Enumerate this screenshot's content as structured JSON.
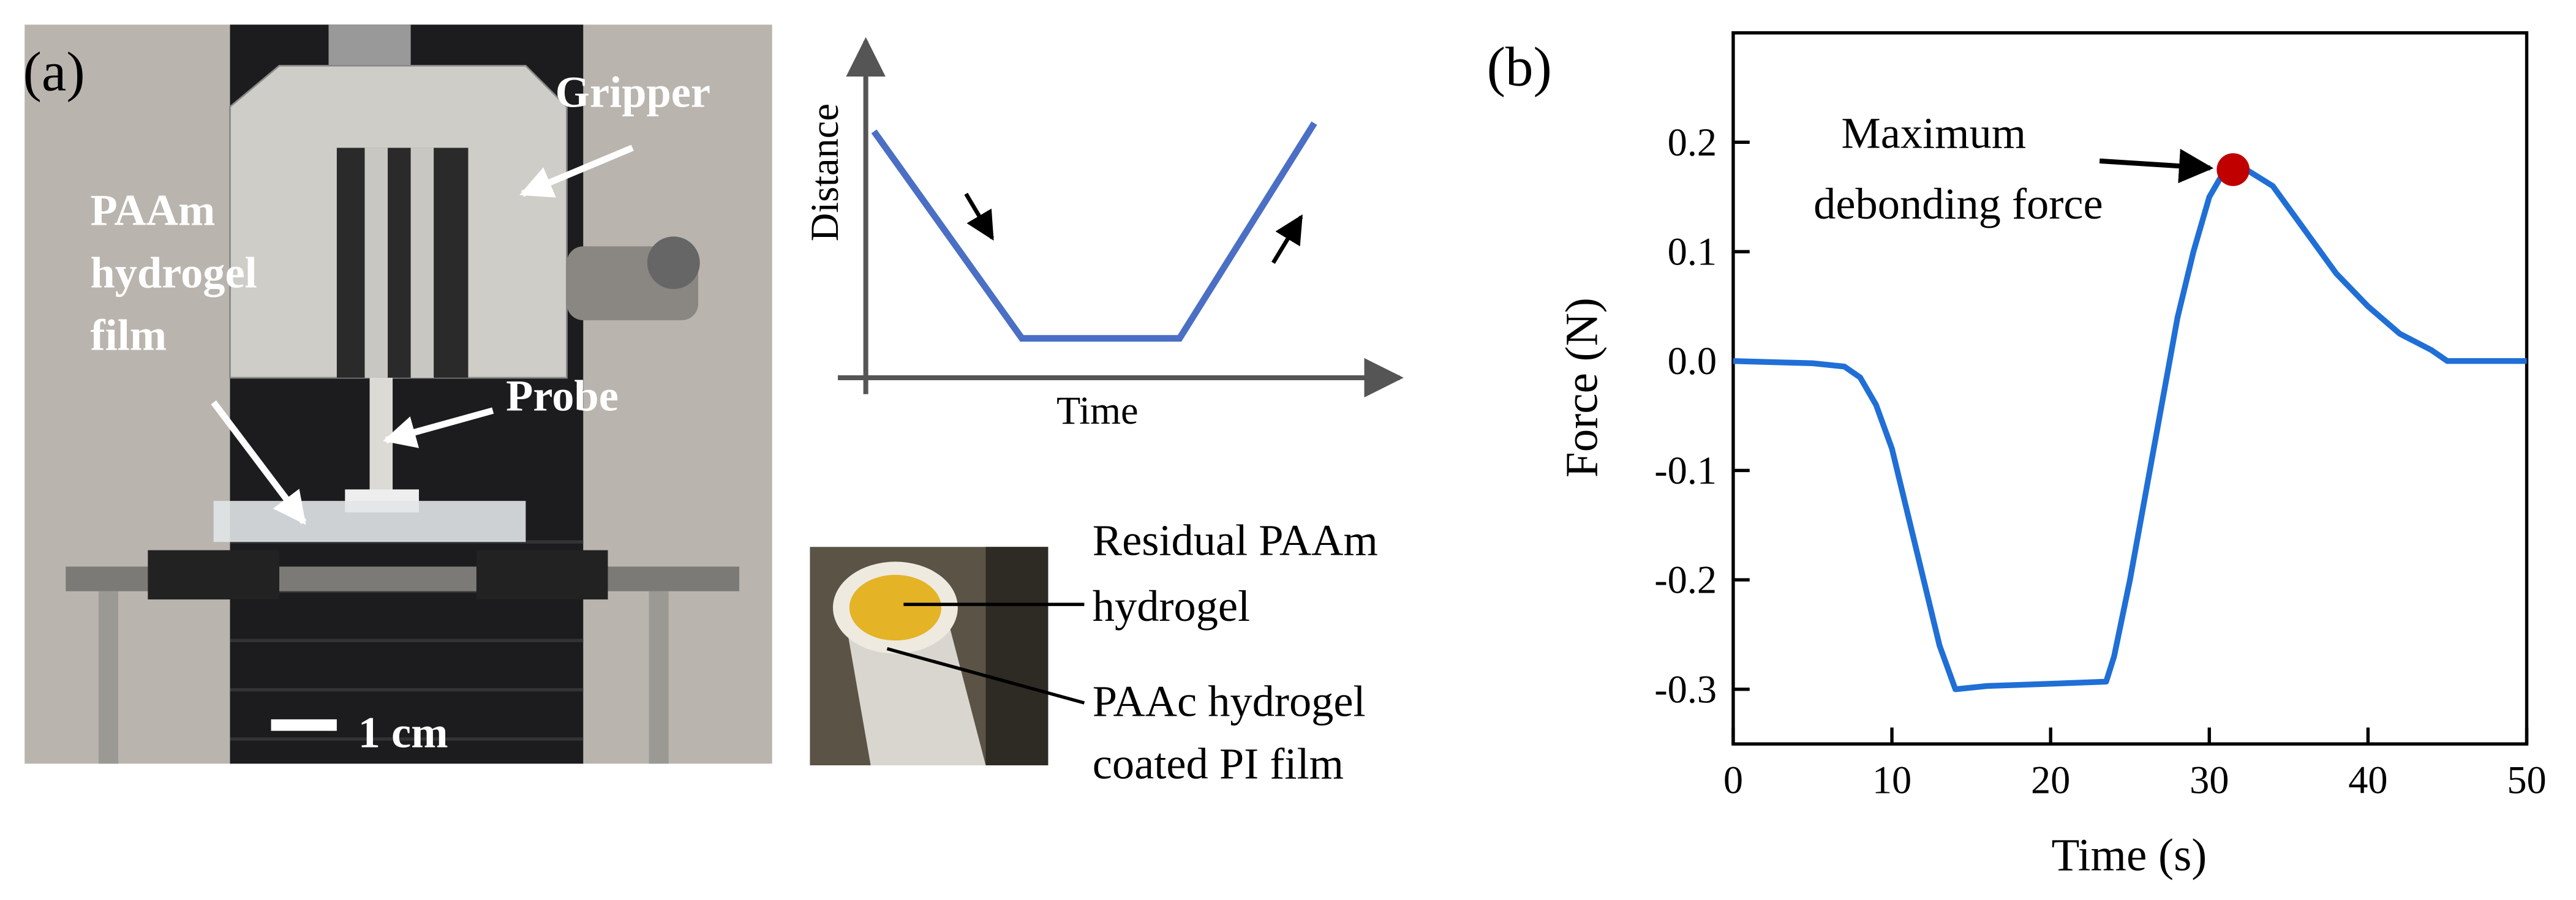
{
  "panel_a": {
    "label": "(a)",
    "photo_labels": [
      "Gripper",
      "PAAm",
      "hydrogel",
      "film",
      "Probe",
      "1 cm"
    ],
    "schematic": {
      "y_label": "Distance",
      "x_label": "Time"
    },
    "inset_labels": [
      "Residual PAAm",
      "hydrogel",
      "PAAc hydrogel",
      "coated PI film"
    ]
  },
  "chart_data": {
    "type": "line",
    "panel_label": "(b)",
    "x_label": "Time (s)",
    "y_label": "Force (N)",
    "x": [
      0,
      5,
      7,
      8,
      9,
      10,
      11,
      12,
      13,
      14,
      16,
      20,
      23.5,
      24,
      25,
      26,
      27,
      28,
      29,
      30,
      31,
      32,
      34,
      36,
      38,
      40,
      42,
      44,
      45,
      50
    ],
    "values": [
      0,
      -0.002,
      -0.005,
      -0.015,
      -0.04,
      -0.08,
      -0.14,
      -0.2,
      -0.26,
      -0.3,
      -0.297,
      -0.295,
      -0.293,
      -0.27,
      -0.2,
      -0.12,
      -0.04,
      0.04,
      0.1,
      0.15,
      0.175,
      0.178,
      0.16,
      0.12,
      0.08,
      0.05,
      0.025,
      0.01,
      0,
      0
    ],
    "color": "#1f6fd6",
    "xlim": [
      0,
      50
    ],
    "xticks": [
      0,
      10,
      20,
      30,
      40,
      50
    ],
    "ylim": [
      -0.35,
      0.3
    ],
    "yticks": [
      -0.3,
      -0.2,
      -0.1,
      {
        "value": 0,
        "label": "0.0"
      },
      0.1,
      0.2
    ],
    "annotation": {
      "text": [
        "Maximum",
        "debonding force"
      ],
      "x": 31.5,
      "y": 0.175,
      "color": "#c00000"
    }
  }
}
